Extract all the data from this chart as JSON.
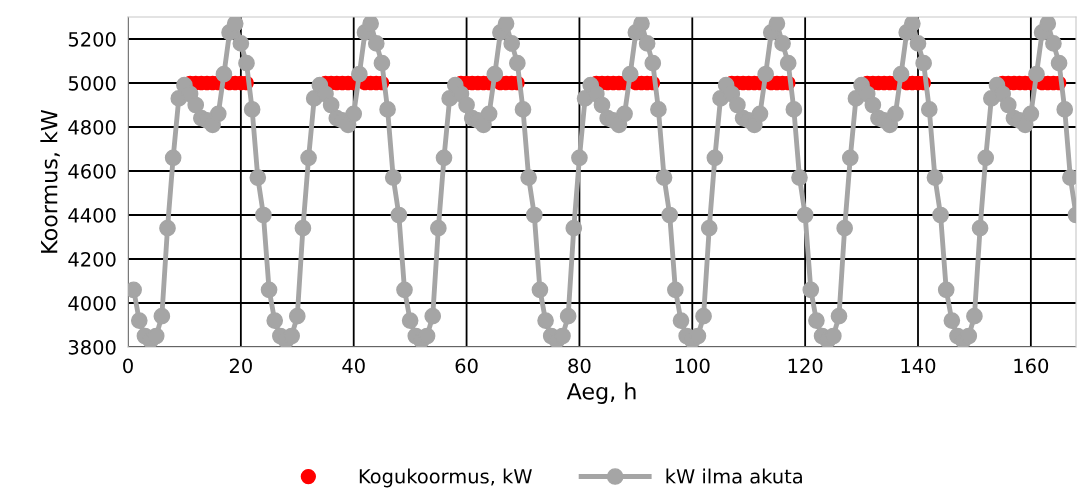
{
  "chart_data": {
    "type": "scatter",
    "xlabel": "Aeg, h",
    "ylabel": "Koormus, kW",
    "x": [
      1,
      2,
      3,
      4,
      5,
      6,
      7,
      8,
      9,
      10,
      11,
      12,
      13,
      14,
      15,
      16,
      17,
      18,
      19,
      20,
      21,
      22,
      23,
      24,
      25,
      26,
      27,
      28,
      29,
      30,
      31,
      32,
      33,
      34,
      35,
      36,
      37,
      38,
      39,
      40,
      41,
      42,
      43,
      44,
      45,
      46,
      47,
      48,
      49,
      50,
      51,
      52,
      53,
      54,
      55,
      56,
      57,
      58,
      59,
      60,
      61,
      62,
      63,
      64,
      65,
      66,
      67,
      68,
      69,
      70,
      71,
      72,
      73,
      74,
      75,
      76,
      77,
      78,
      79,
      80,
      81,
      82,
      83,
      84,
      85,
      86,
      87,
      88,
      89,
      90,
      91,
      92,
      93,
      94,
      95,
      96,
      97,
      98,
      99,
      100,
      101,
      102,
      103,
      104,
      105,
      106,
      107,
      108,
      109,
      110,
      111,
      112,
      113,
      114,
      115,
      116,
      117,
      118,
      119,
      120,
      121,
      122,
      123,
      124,
      125,
      126,
      127,
      128,
      129,
      130,
      131,
      132,
      133,
      134,
      135,
      136,
      137,
      138,
      139,
      140,
      141,
      142,
      143,
      144,
      145,
      146,
      147,
      148,
      149,
      150,
      151,
      152,
      153,
      154,
      155,
      156,
      157,
      158,
      159,
      160,
      161,
      162,
      163,
      164,
      165,
      166,
      167,
      168
    ],
    "series": [
      {
        "name": "Kogukoormus, kW",
        "color": "#ff0000",
        "marker": "circle",
        "values": [
          null,
          null,
          null,
          null,
          null,
          null,
          null,
          null,
          null,
          null,
          5000,
          5000,
          5000,
          5000,
          5000,
          5000,
          null,
          5000,
          5000,
          5000,
          5000,
          null,
          null,
          null,
          null,
          null,
          null,
          null,
          null,
          null,
          null,
          null,
          null,
          null,
          5000,
          5000,
          5000,
          5000,
          5000,
          5000,
          null,
          5000,
          5000,
          5000,
          5000,
          null,
          null,
          null,
          null,
          null,
          null,
          null,
          null,
          null,
          null,
          null,
          null,
          null,
          5000,
          5000,
          5000,
          5000,
          5000,
          5000,
          null,
          5000,
          5000,
          5000,
          5000,
          null,
          null,
          null,
          null,
          null,
          null,
          null,
          null,
          null,
          null,
          null,
          null,
          null,
          5000,
          5000,
          5000,
          5000,
          5000,
          5000,
          null,
          5000,
          5000,
          5000,
          5000,
          null,
          null,
          null,
          null,
          null,
          null,
          null,
          null,
          null,
          null,
          null,
          null,
          null,
          5000,
          5000,
          5000,
          5000,
          5000,
          5000,
          null,
          5000,
          5000,
          5000,
          5000,
          null,
          null,
          null,
          null,
          null,
          null,
          null,
          null,
          null,
          null,
          null,
          null,
          null,
          5000,
          5000,
          5000,
          5000,
          5000,
          5000,
          null,
          5000,
          5000,
          5000,
          5000,
          null,
          null,
          null,
          null,
          null,
          null,
          null,
          null,
          null,
          null,
          null,
          null,
          null,
          5000,
          5000,
          5000,
          5000,
          5000,
          5000,
          null,
          5000,
          5000,
          5000,
          5000,
          null,
          null,
          null
        ]
      },
      {
        "name": "kW ilma akuta",
        "type": "line",
        "color": "#a5a5a5",
        "marker": "circle",
        "line_style": "solid",
        "values": [
          4060,
          3920,
          3850,
          3830,
          3850,
          3940,
          4340,
          4660,
          4930,
          4990,
          4950,
          4900,
          4840,
          4830,
          4810,
          4860,
          5040,
          5230,
          5270,
          5180,
          5090,
          4880,
          4570,
          4400,
          4060,
          3920,
          3850,
          3830,
          3850,
          3940,
          4340,
          4660,
          4930,
          4990,
          4950,
          4900,
          4840,
          4830,
          4810,
          4860,
          5040,
          5230,
          5270,
          5180,
          5090,
          4880,
          4570,
          4400,
          4060,
          3920,
          3850,
          3830,
          3850,
          3940,
          4340,
          4660,
          4930,
          4990,
          4950,
          4900,
          4840,
          4830,
          4810,
          4860,
          5040,
          5230,
          5270,
          5180,
          5090,
          4880,
          4570,
          4400,
          4060,
          3920,
          3850,
          3830,
          3850,
          3940,
          4340,
          4660,
          4930,
          4990,
          4950,
          4900,
          4840,
          4830,
          4810,
          4860,
          5040,
          5230,
          5270,
          5180,
          5090,
          4880,
          4570,
          4400,
          4060,
          3920,
          3850,
          3830,
          3850,
          3940,
          4340,
          4660,
          4930,
          4990,
          4950,
          4900,
          4840,
          4830,
          4810,
          4860,
          5040,
          5230,
          5270,
          5180,
          5090,
          4880,
          4570,
          4400,
          4060,
          3920,
          3850,
          3830,
          3850,
          3940,
          4340,
          4660,
          4930,
          4990,
          4950,
          4900,
          4840,
          4830,
          4810,
          4860,
          5040,
          5230,
          5270,
          5180,
          5090,
          4880,
          4570,
          4400,
          4060,
          3920,
          3850,
          3830,
          3850,
          3940,
          4340,
          4660,
          4930,
          4990,
          4950,
          4900,
          4840,
          4830,
          4810,
          4860,
          5040,
          5230,
          5270,
          5180,
          5090,
          4880,
          4570,
          4400
        ]
      }
    ],
    "xlim": [
      0,
      168
    ],
    "xticks": [
      0,
      20,
      40,
      60,
      80,
      100,
      120,
      140,
      160
    ],
    "ylim": [
      3800,
      5300
    ],
    "yticks": [
      3800,
      4000,
      4200,
      4400,
      4600,
      4800,
      5000,
      5200
    ],
    "grid": true,
    "legend": "bottom"
  }
}
